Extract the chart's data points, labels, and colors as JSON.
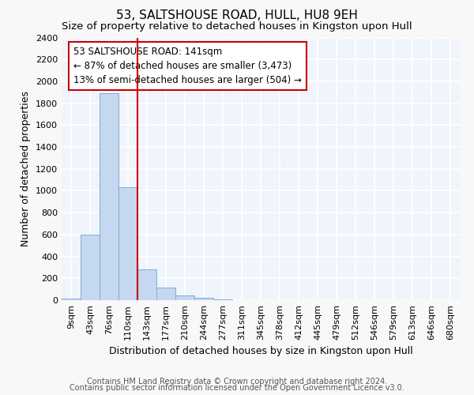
{
  "title": "53, SALTSHOUSE ROAD, HULL, HU8 9EH",
  "subtitle": "Size of property relative to detached houses in Kingston upon Hull",
  "xlabel": "Distribution of detached houses by size in Kingston upon Hull",
  "ylabel": "Number of detached properties",
  "categories": [
    "9sqm",
    "43sqm",
    "76sqm",
    "110sqm",
    "143sqm",
    "177sqm",
    "210sqm",
    "244sqm",
    "277sqm",
    "311sqm",
    "345sqm",
    "378sqm",
    "412sqm",
    "445sqm",
    "479sqm",
    "512sqm",
    "546sqm",
    "579sqm",
    "613sqm",
    "646sqm",
    "680sqm"
  ],
  "values": [
    15,
    600,
    1890,
    1035,
    285,
    115,
    45,
    20,
    5,
    0,
    0,
    0,
    0,
    0,
    0,
    0,
    0,
    0,
    0,
    0,
    0
  ],
  "bar_color": "#c5d8ef",
  "bar_edgecolor": "#7aaddb",
  "vline_x_idx": 4,
  "vline_color": "#cc0000",
  "annotation_text": "53 SALTSHOUSE ROAD: 141sqm\n← 87% of detached houses are smaller (3,473)\n13% of semi-detached houses are larger (504) →",
  "annotation_box_facecolor": "#ffffff",
  "annotation_box_edgecolor": "#cc0000",
  "ylim": [
    0,
    2400
  ],
  "yticks": [
    0,
    200,
    400,
    600,
    800,
    1000,
    1200,
    1400,
    1600,
    1800,
    2000,
    2200,
    2400
  ],
  "footer1": "Contains HM Land Registry data © Crown copyright and database right 2024.",
  "footer2": "Contains public sector information licensed under the Open Government Licence v3.0.",
  "fig_facecolor": "#f8f8f8",
  "ax_facecolor": "#f0f4fb",
  "grid_color": "#ffffff",
  "title_fontsize": 11,
  "subtitle_fontsize": 9.5,
  "ylabel_fontsize": 9,
  "xlabel_fontsize": 9,
  "tick_fontsize": 8,
  "annotation_fontsize": 8.5,
  "footer_fontsize": 7
}
